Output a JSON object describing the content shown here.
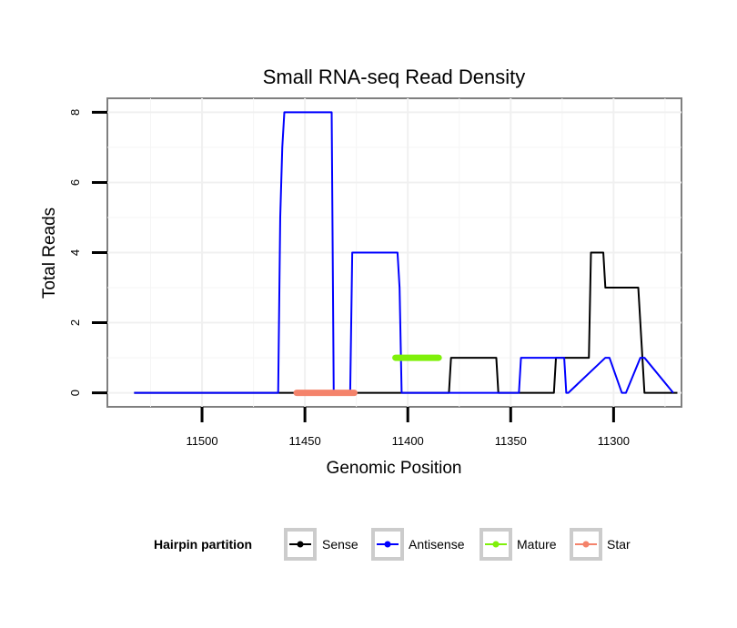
{
  "chart_data": {
    "type": "line",
    "title": "Small RNA-seq Read Density",
    "xlabel": "Genomic Position",
    "ylabel": "Total Reads",
    "x_reversed": true,
    "xlim": [
      11546,
      11267
    ],
    "ylim": [
      -0.4,
      8.4
    ],
    "x_ticks": [
      11500,
      11450,
      11400,
      11350,
      11300
    ],
    "y_ticks": [
      0,
      2,
      4,
      6,
      8
    ],
    "grid": true,
    "legend": {
      "title": "Hairpin partition",
      "position": "bottom",
      "entries": [
        "Sense",
        "Antisense",
        "Mature",
        "Star"
      ]
    },
    "series": [
      {
        "name": "Sense",
        "color": "#000000",
        "x": [
          11533,
          11380,
          11379,
          11378,
          11357,
          11356,
          11355,
          11329,
          11328,
          11327,
          11312,
          11311,
          11305,
          11304,
          11288,
          11286,
          11285,
          11269
        ],
        "y": [
          0,
          0,
          1,
          1,
          1,
          0,
          0,
          0,
          1,
          1,
          1,
          4,
          4,
          3,
          3,
          1,
          0,
          0
        ]
      },
      {
        "name": "Antisense",
        "color": "#0000ff",
        "x": [
          11533,
          11463,
          11462,
          11461,
          11460,
          11437,
          11436,
          11428,
          11427,
          11405,
          11404,
          11403,
          11346,
          11345,
          11344,
          11324,
          11323,
          11322,
          11304,
          11303,
          11302,
          11296,
          11295,
          11294,
          11287,
          11286,
          11285,
          11271
        ],
        "y": [
          0,
          0,
          5,
          7,
          8,
          8,
          0,
          0,
          4,
          4,
          3,
          0,
          0,
          1,
          1,
          1,
          0,
          0,
          1,
          1,
          1,
          0,
          0,
          0,
          1,
          1,
          1,
          0
        ]
      },
      {
        "name": "Mature",
        "color": "#7ff00a",
        "x": [
          11406,
          11385
        ],
        "y": [
          1,
          1
        ]
      },
      {
        "name": "Star",
        "color": "#f4836b",
        "x": [
          11454,
          11426
        ],
        "y": [
          0,
          0
        ]
      }
    ]
  }
}
